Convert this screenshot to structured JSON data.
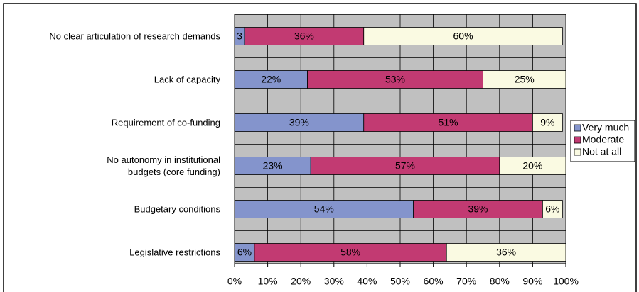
{
  "chart_data": {
    "type": "stacked-bar-horizontal",
    "categories": [
      "No clear articulation of research demands",
      "Lack of capacity",
      "Requirement of co-funding",
      "No autonomy in institutional\nbudgets (core funding)",
      "Budgetary conditions",
      "Legislative restrictions"
    ],
    "series": [
      {
        "name": "Very much",
        "color": "#8494cc",
        "values": [
          3,
          22,
          39,
          23,
          54,
          6
        ],
        "value_labels": [
          "3",
          "22%",
          "39%",
          "23%",
          "54%",
          "6%"
        ]
      },
      {
        "name": "Moderate",
        "color": "#c23a72",
        "values": [
          36,
          53,
          51,
          57,
          39,
          58
        ],
        "value_labels": [
          "36%",
          "53%",
          "51%",
          "57%",
          "39%",
          "58%"
        ]
      },
      {
        "name": "Not at all",
        "color": "#fafae2",
        "values": [
          60,
          25,
          9,
          20,
          6,
          36
        ],
        "value_labels": [
          "60%",
          "25%",
          "9%",
          "20%",
          "6%",
          "36%"
        ]
      }
    ],
    "xlim": [
      0,
      100
    ],
    "xticks": [
      {
        "value": 0,
        "label": "0%"
      },
      {
        "value": 10,
        "label": "10%"
      },
      {
        "value": 20,
        "label": "20%"
      },
      {
        "value": 30,
        "label": "30%"
      },
      {
        "value": 40,
        "label": "40%"
      },
      {
        "value": 50,
        "label": "50%"
      },
      {
        "value": 60,
        "label": "60%"
      },
      {
        "value": 70,
        "label": "70%"
      },
      {
        "value": 80,
        "label": "80%"
      },
      {
        "value": 90,
        "label": "90%"
      },
      {
        "value": 100,
        "label": "100%"
      }
    ],
    "grid": true,
    "legend": "right"
  }
}
